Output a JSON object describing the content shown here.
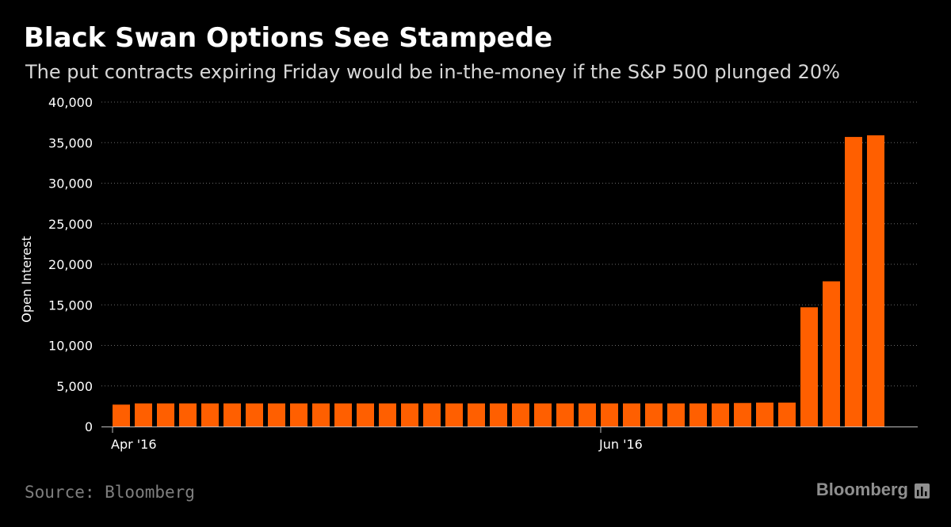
{
  "chart_data": {
    "type": "bar",
    "title": "Black Swan Options See Stampede",
    "subtitle": "The put contracts expiring Friday would be in-the-money if the S&P 500 plunged 20%",
    "ylabel": "Open Interest",
    "xlabel": "",
    "ylim": [
      0,
      40000
    ],
    "yticks": [
      0,
      5000,
      10000,
      15000,
      20000,
      25000,
      30000,
      35000,
      40000
    ],
    "ytick_labels": [
      "0",
      "5,000",
      "10,000",
      "15,000",
      "20,000",
      "25,000",
      "30,000",
      "35,000",
      "40,000"
    ],
    "xtick_labels": [
      {
        "label": "Apr '16",
        "bar_index": 0
      },
      {
        "label": "Jun '16",
        "bar_index": 22
      }
    ],
    "grid": true,
    "bar_color": "#ff5f00",
    "values": [
      2700,
      2850,
      2850,
      2850,
      2850,
      2850,
      2850,
      2850,
      2850,
      2850,
      2850,
      2850,
      2850,
      2850,
      2850,
      2850,
      2850,
      2850,
      2850,
      2850,
      2850,
      2850,
      2850,
      2850,
      2850,
      2850,
      2850,
      2850,
      2900,
      2950,
      2950,
      14700,
      17900,
      35700,
      35900
    ]
  },
  "footer": {
    "source": "Source: Bloomberg",
    "brand": "Bloomberg"
  }
}
